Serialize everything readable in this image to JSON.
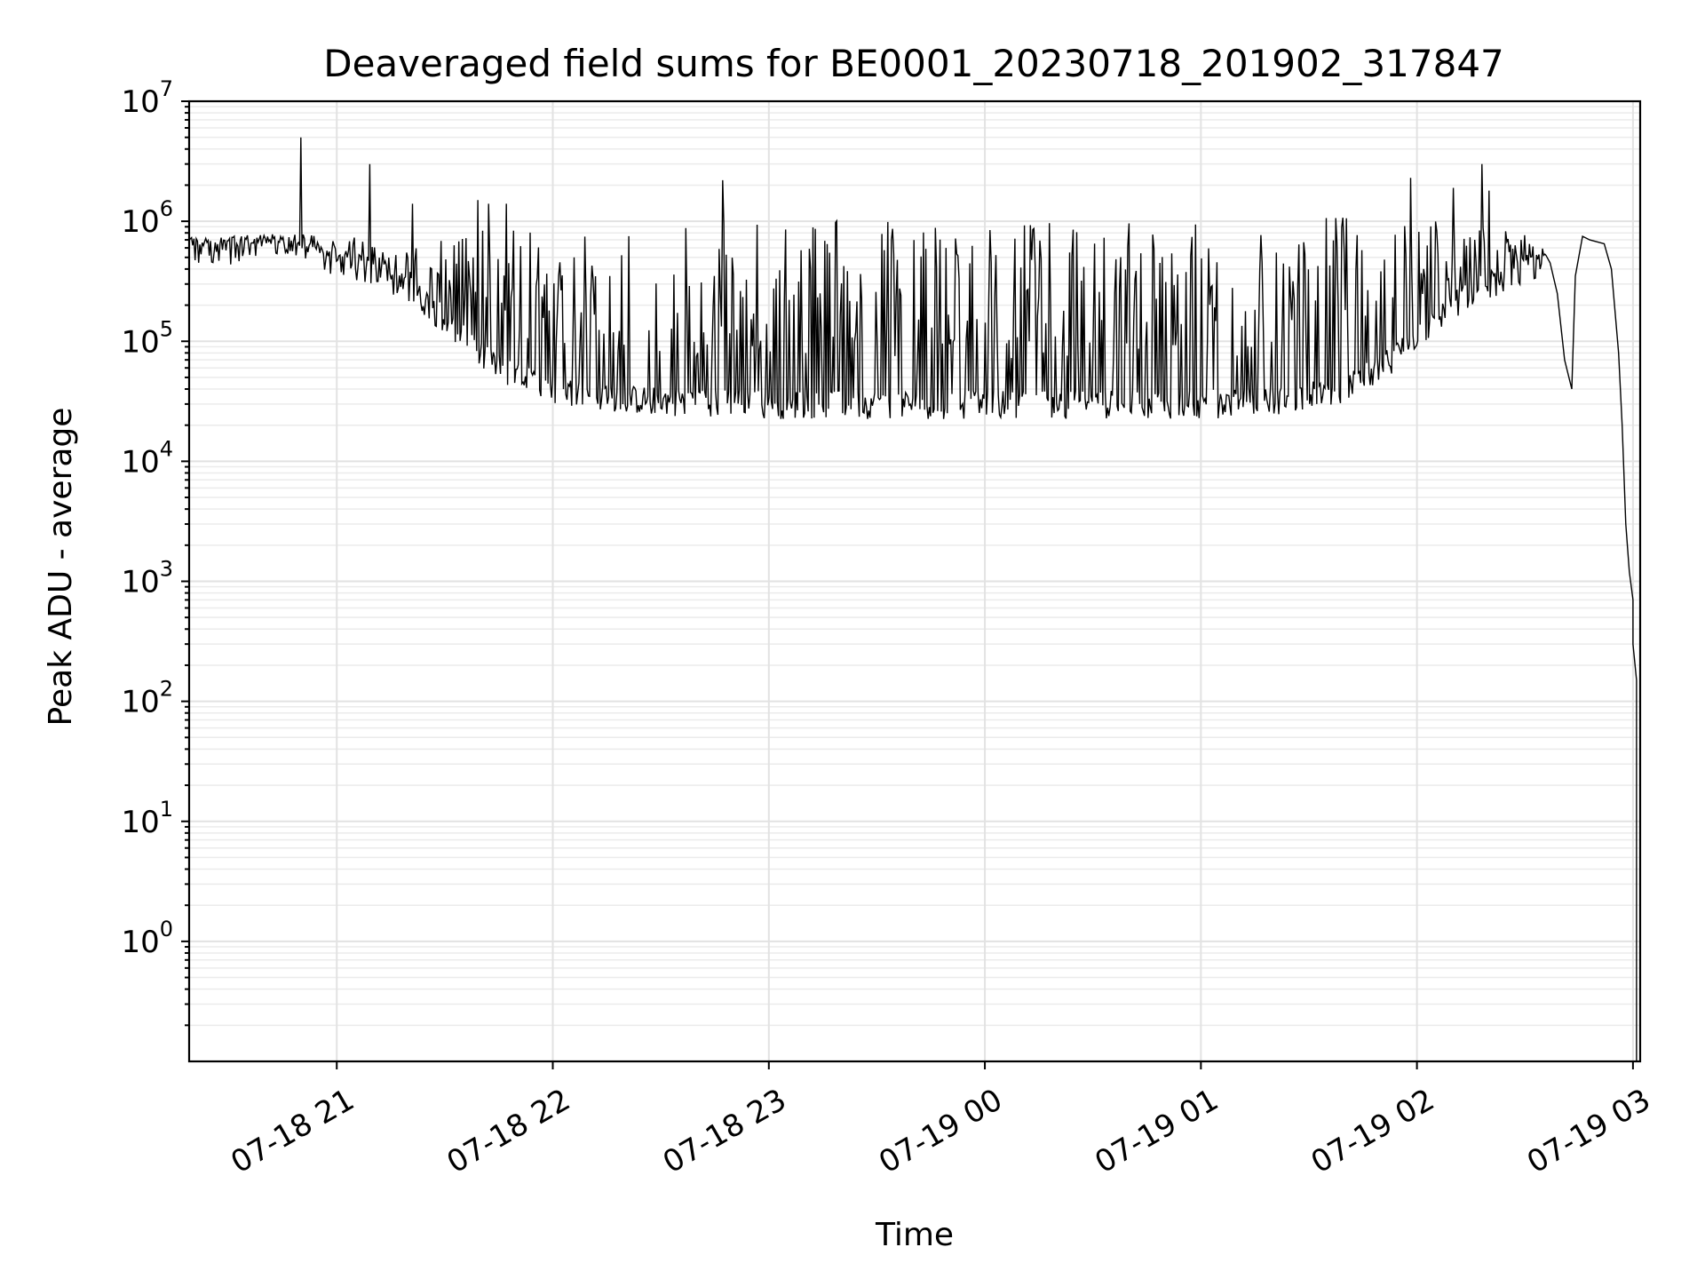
{
  "chart_data": {
    "type": "line",
    "title": "Deaveraged field sums for BE0001_20230718_201902_317847",
    "xlabel": "Time",
    "ylabel": "Peak ADU - average",
    "x_scale": "time",
    "y_scale": "log",
    "xlim": [
      "07-18 20:19",
      "07-19 03:02"
    ],
    "ylim": [
      0.1,
      10000000
    ],
    "grid": true,
    "x_ticks": [
      {
        "label": "07-18 21",
        "value": "07-18 21:00"
      },
      {
        "label": "07-18 22",
        "value": "07-18 22:00"
      },
      {
        "label": "07-18 23",
        "value": "07-18 23:00"
      },
      {
        "label": "07-19 00",
        "value": "07-19 00:00"
      },
      {
        "label": "07-19 01",
        "value": "07-19 01:00"
      },
      {
        "label": "07-19 02",
        "value": "07-19 02:00"
      },
      {
        "label": "07-19 03",
        "value": "07-19 03:00"
      }
    ],
    "y_ticks": [
      {
        "base": "10",
        "exp": "0",
        "value": 1
      },
      {
        "base": "10",
        "exp": "1",
        "value": 10
      },
      {
        "base": "10",
        "exp": "2",
        "value": 100
      },
      {
        "base": "10",
        "exp": "3",
        "value": 1000
      },
      {
        "base": "10",
        "exp": "4",
        "value": 10000
      },
      {
        "base": "10",
        "exp": "5",
        "value": 100000
      },
      {
        "base": "10",
        "exp": "6",
        "value": 1000000
      },
      {
        "base": "10",
        "exp": "7",
        "value": 10000000
      }
    ],
    "series": [
      {
        "color": "#000000",
        "baseline": {
          "time": [
            "07-18 20:19",
            "07-18 20:40",
            "07-18 20:48",
            "07-18 20:55",
            "07-18 21:05",
            "07-18 21:15",
            "07-18 21:25",
            "07-18 21:32",
            "07-18 21:40",
            "07-18 21:50",
            "07-18 22:00",
            "07-18 22:10",
            "07-18 22:20",
            "07-18 22:40",
            "07-18 23:00",
            "07-18 23:30",
            "07-19 00:00",
            "07-19 00:30",
            "07-19 01:00",
            "07-19 01:20",
            "07-19 01:40",
            "07-19 01:50",
            "07-19 02:00",
            "07-19 02:10",
            "07-19 02:20",
            "07-19 02:37",
            "07-19 02:39",
            "07-19 02:41",
            "07-19 02:43",
            "07-19 02:44",
            "07-19 02:46",
            "07-19 02:48",
            "07-19 02:52",
            "07-19 02:54",
            "07-19 02:56",
            "07-19 02:57",
            "07-19 02:58",
            "07-19 02:59",
            "07-19 03:00",
            "07-19 03:00",
            "07-19 03:01",
            "07-19 03:01",
            "07-19 03:01"
          ],
          "value": [
            550000,
            600000,
            580000,
            500000,
            420000,
            330000,
            210000,
            130000,
            75000,
            50000,
            40000,
            36000,
            33000,
            31000,
            30000,
            30000,
            30000,
            30000,
            30000,
            32000,
            40000,
            60000,
            110000,
            200000,
            300000,
            450000,
            250000,
            70000,
            40000,
            350000,
            750000,
            700000,
            650000,
            400000,
            80000,
            20000,
            3000,
            1200,
            700,
            300,
            150,
            60,
            0.1
          ]
        },
        "upper_envelope": {
          "time": [
            "07-18 20:19",
            "07-18 20:55",
            "07-18 21:10",
            "07-18 21:30",
            "07-18 21:50",
            "07-18 22:00",
            "07-18 22:30",
            "07-18 23:00",
            "07-18 23:30",
            "07-19 00:00",
            "07-19 00:30",
            "07-19 01:00",
            "07-19 01:30",
            "07-19 02:00",
            "07-19 02:20",
            "07-19 02:35"
          ],
          "value": [
            750000,
            800000,
            700000,
            800000,
            1000000,
            950000,
            1000000,
            1050000,
            1000000,
            1000000,
            1000000,
            1050000,
            1150000,
            1200000,
            900000,
            750000
          ]
        },
        "spikes": [
          {
            "time": "07-18 20:50",
            "value": 5000000
          },
          {
            "time": "07-18 21:09",
            "value": 3000000
          },
          {
            "time": "07-18 21:21",
            "value": 1400000
          },
          {
            "time": "07-18 21:39",
            "value": 1500000
          },
          {
            "time": "07-18 21:42",
            "value": 1400000
          },
          {
            "time": "07-18 21:47",
            "value": 1400000
          },
          {
            "time": "07-18 22:47",
            "value": 2200000
          },
          {
            "time": "07-19 01:58",
            "value": 2300000
          },
          {
            "time": "07-19 02:10",
            "value": 1900000
          },
          {
            "time": "07-19 02:18",
            "value": 3000000
          },
          {
            "time": "07-19 02:20",
            "value": 1800000
          }
        ]
      }
    ]
  }
}
